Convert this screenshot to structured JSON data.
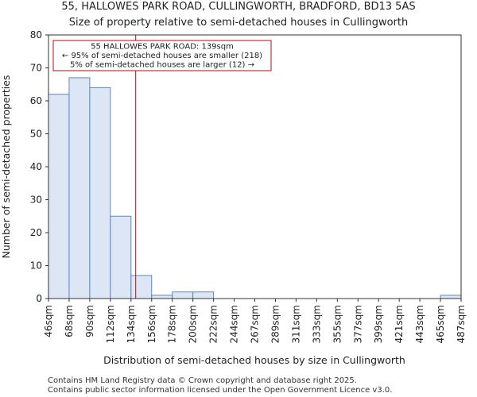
{
  "chart_data": {
    "type": "bar",
    "title": "55, HALLOWES PARK ROAD, CULLINGWORTH, BRADFORD, BD13 5AS",
    "subtitle": "Size of property relative to semi-detached houses in Cullingworth",
    "xlabel": "Distribution of semi-detached houses by size in Cullingworth",
    "ylabel": "Number of semi-detached properties",
    "bin_edges": [
      46,
      68,
      90,
      112,
      134,
      156,
      178,
      200,
      222,
      244,
      267,
      289,
      311,
      333,
      355,
      377,
      399,
      421,
      443,
      465,
      487
    ],
    "x_tick_labels": [
      "46sqm",
      "68sqm",
      "90sqm",
      "112sqm",
      "134sqm",
      "156sqm",
      "178sqm",
      "200sqm",
      "222sqm",
      "244sqm",
      "267sqm",
      "289sqm",
      "311sqm",
      "333sqm",
      "355sqm",
      "377sqm",
      "399sqm",
      "421sqm",
      "443sqm",
      "465sqm",
      "487sqm"
    ],
    "values": [
      62,
      67,
      64,
      25,
      7,
      1,
      2,
      2,
      0,
      0,
      0,
      0,
      0,
      0,
      0,
      0,
      0,
      0,
      0,
      1
    ],
    "ylim": [
      0,
      80
    ],
    "y_ticks": [
      0,
      10,
      20,
      30,
      40,
      50,
      60,
      70,
      80
    ],
    "bar_color": "#dce6f4",
    "bar_edge_color": "#5b87c5",
    "marker": {
      "value": 139,
      "color": "#aa1111",
      "annotation": [
        "55 HALLOWES PARK ROAD: 139sqm",
        "← 95% of semi-detached houses are smaller (218)",
        "5% of semi-detached houses are larger (12) →"
      ]
    },
    "footer": [
      "Contains HM Land Registry data © Crown copyright and database right 2025.",
      "Contains public sector information licensed under the Open Government Licence v3.0."
    ]
  }
}
